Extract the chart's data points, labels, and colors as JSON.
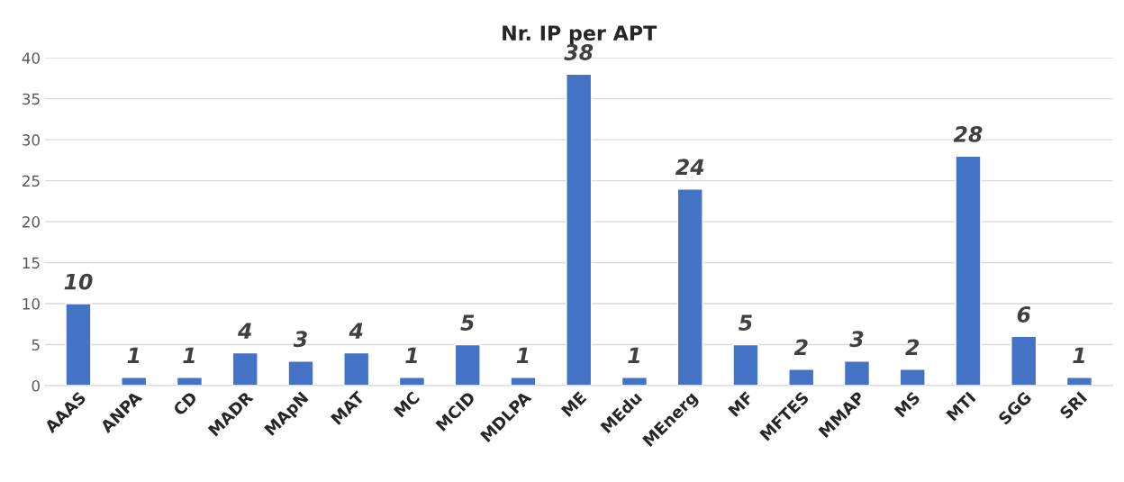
{
  "chart_data": {
    "type": "bar",
    "title": "Nr. IP per APT",
    "categories": [
      "AAAS",
      "ANPA",
      "CD",
      "MADR",
      "MApN",
      "MAT",
      "MC",
      "MCID",
      "MDLPA",
      "ME",
      "MEdu",
      "MEnerg",
      "MF",
      "MFTES",
      "MMAP",
      "MS",
      "MTI",
      "SGG",
      "SRI"
    ],
    "values": [
      10,
      1,
      1,
      4,
      3,
      4,
      1,
      5,
      1,
      38,
      1,
      24,
      5,
      2,
      3,
      2,
      28,
      6,
      1
    ],
    "color": "#4472c4",
    "ylim": [
      0,
      40
    ],
    "yticks": [
      0,
      5,
      10,
      15,
      20,
      25,
      30,
      35,
      40
    ],
    "grid": "y",
    "data_labels": true,
    "legend": false
  }
}
